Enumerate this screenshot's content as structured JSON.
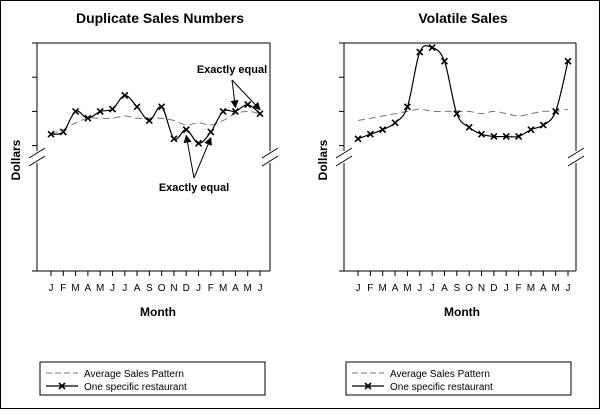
{
  "chart_data": [
    {
      "type": "line",
      "title": "Duplicate Sales Numbers",
      "xlabel": "Month",
      "ylabel": "Dollars",
      "categories": [
        "J",
        "F",
        "M",
        "A",
        "M",
        "J",
        "J",
        "A",
        "S",
        "O",
        "N",
        "D",
        "J",
        "F",
        "M",
        "A",
        "M",
        "J"
      ],
      "ylim": [
        0,
        100
      ],
      "y_axis_break": true,
      "series": [
        {
          "name": "Average Sales Pattern",
          "style": "dashed",
          "color": "#777777",
          "values": [
            60,
            62,
            65,
            67,
            67,
            67,
            68,
            67,
            67,
            67,
            66,
            64,
            65,
            64,
            66,
            69,
            70,
            69
          ]
        },
        {
          "name": "One specific restaurant",
          "style": "solid-x",
          "color": "#000000",
          "values": [
            60,
            61,
            70,
            67,
            70,
            71,
            77,
            72,
            66,
            72,
            58,
            62,
            56,
            61,
            70,
            70,
            73,
            69
          ]
        }
      ],
      "annotations": [
        {
          "text": "Exactly equal",
          "arrows_to": [
            15,
            17
          ]
        },
        {
          "text": "Exactly equal",
          "arrows_to": [
            11,
            13
          ]
        }
      ]
    },
    {
      "type": "line",
      "title": "Volatile Sales",
      "xlabel": "Month",
      "ylabel": "Dollars",
      "categories": [
        "J",
        "F",
        "M",
        "A",
        "M",
        "J",
        "J",
        "A",
        "S",
        "O",
        "N",
        "D",
        "J",
        "F",
        "M",
        "A",
        "M",
        "J"
      ],
      "ylim": [
        0,
        100
      ],
      "y_axis_break": true,
      "series": [
        {
          "name": "Average Sales Pattern",
          "style": "dashed",
          "color": "#777777",
          "values": [
            66,
            67,
            68,
            69,
            70,
            71,
            70,
            70,
            70,
            70,
            69,
            70,
            69,
            68,
            69,
            70,
            70,
            71
          ]
        },
        {
          "name": "One specific restaurant",
          "style": "solid-x",
          "color": "#000000",
          "values": [
            58,
            60,
            62,
            65,
            72,
            96,
            98,
            92,
            69,
            63,
            60,
            59,
            59,
            59,
            62,
            64,
            70,
            92
          ]
        }
      ]
    }
  ]
}
